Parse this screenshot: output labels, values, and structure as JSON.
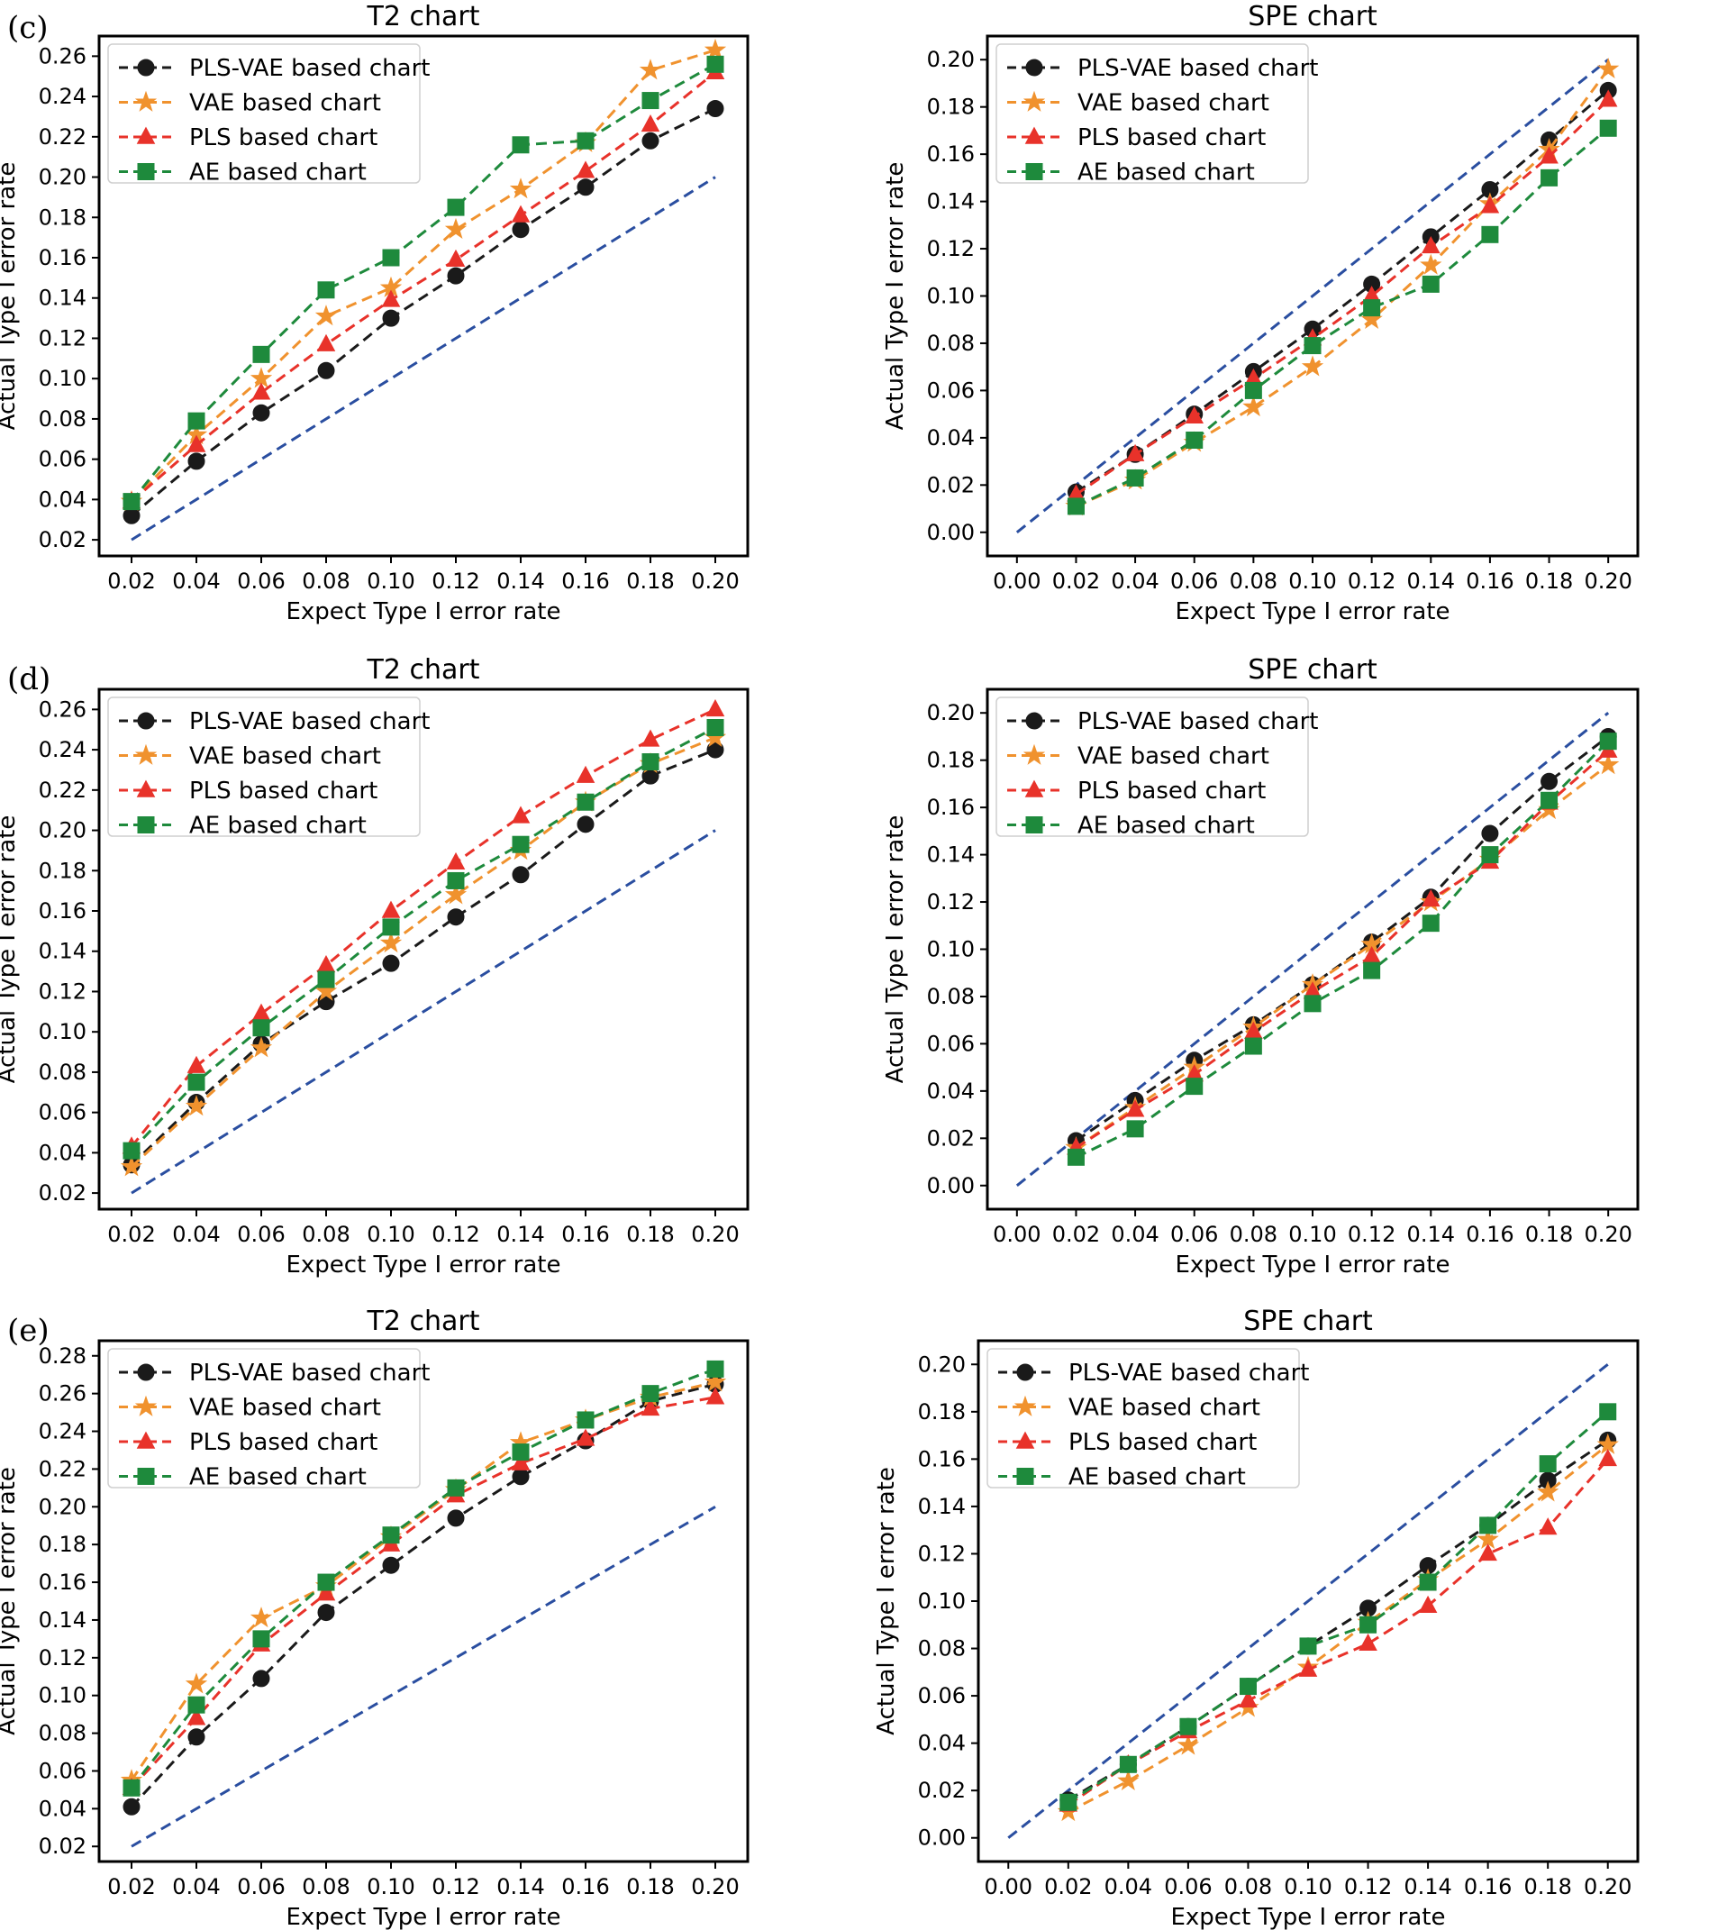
{
  "panel_labels": [
    "(c)",
    "(d)",
    "(e)"
  ],
  "chart_data": [
    {
      "id": "c-t2",
      "panel": "(c)",
      "type": "line",
      "title": "T2 chart",
      "xlabel": "Expect Type I error rate",
      "ylabel": "Actual Type I error rate",
      "x": [
        0.02,
        0.04,
        0.06,
        0.08,
        0.1,
        0.12,
        0.14,
        0.16,
        0.18,
        0.2
      ],
      "xticks": [
        "0.02",
        "0.04",
        "0.06",
        "0.08",
        "0.10",
        "0.12",
        "0.14",
        "0.16",
        "0.18",
        "0.20"
      ],
      "yticks": [
        "0.02",
        "0.04",
        "0.06",
        "0.08",
        "0.10",
        "0.12",
        "0.14",
        "0.16",
        "0.18",
        "0.20",
        "0.22",
        "0.24",
        "0.26"
      ],
      "xlim": [
        0.01,
        0.21
      ],
      "ylim": [
        0.012,
        0.27
      ],
      "reference": {
        "x": [
          0.02,
          0.2
        ],
        "y": [
          0.02,
          0.2
        ],
        "color": "#2a4ea0"
      },
      "legend_position": "upper-left",
      "series": [
        {
          "name": "PLS-VAE based chart",
          "color": "#1a1a1a",
          "marker": "circle",
          "values": [
            0.032,
            0.059,
            0.083,
            0.104,
            0.13,
            0.151,
            0.174,
            0.195,
            0.218,
            0.234
          ]
        },
        {
          "name": "VAE based chart",
          "color": "#f0922e",
          "marker": "star",
          "values": [
            0.039,
            0.072,
            0.1,
            0.131,
            0.145,
            0.174,
            0.194,
            0.217,
            0.253,
            0.263
          ]
        },
        {
          "name": "PLS based chart",
          "color": "#e8322a",
          "marker": "triangle",
          "values": [
            0.039,
            0.067,
            0.093,
            0.117,
            0.139,
            0.159,
            0.181,
            0.203,
            0.226,
            0.252
          ]
        },
        {
          "name": "AE based chart",
          "color": "#1e8a3c",
          "marker": "square",
          "values": [
            0.039,
            0.079,
            0.112,
            0.144,
            0.16,
            0.185,
            0.216,
            0.218,
            0.238,
            0.256
          ]
        }
      ]
    },
    {
      "id": "c-spe",
      "panel": "(c)",
      "type": "line",
      "title": "SPE chart",
      "xlabel": "Expect Type I error rate",
      "ylabel": "Actual Type I error rate",
      "x": [
        0.02,
        0.04,
        0.06,
        0.08,
        0.1,
        0.12,
        0.14,
        0.16,
        0.18,
        0.2
      ],
      "xticks": [
        "0.00",
        "0.02",
        "0.04",
        "0.06",
        "0.08",
        "0.10",
        "0.12",
        "0.14",
        "0.16",
        "0.18",
        "0.20"
      ],
      "yticks": [
        "0.00",
        "0.02",
        "0.04",
        "0.06",
        "0.08",
        "0.10",
        "0.12",
        "0.14",
        "0.16",
        "0.18",
        "0.20"
      ],
      "xlim": [
        -0.01,
        0.21
      ],
      "ylim": [
        -0.01,
        0.21
      ],
      "reference": {
        "x": [
          0.0,
          0.2
        ],
        "y": [
          0.0,
          0.2
        ],
        "color": "#2a4ea0"
      },
      "legend_position": "upper-left",
      "series": [
        {
          "name": "PLS-VAE based chart",
          "color": "#1a1a1a",
          "marker": "circle",
          "values": [
            0.017,
            0.033,
            0.05,
            0.068,
            0.086,
            0.105,
            0.125,
            0.145,
            0.166,
            0.187
          ]
        },
        {
          "name": "VAE based chart",
          "color": "#f0922e",
          "marker": "star",
          "values": [
            0.011,
            0.022,
            0.038,
            0.053,
            0.07,
            0.09,
            0.113,
            0.139,
            0.162,
            0.196
          ]
        },
        {
          "name": "PLS based chart",
          "color": "#e8322a",
          "marker": "triangle",
          "values": [
            0.016,
            0.033,
            0.049,
            0.065,
            0.082,
            0.1,
            0.121,
            0.138,
            0.159,
            0.183
          ]
        },
        {
          "name": "AE based chart",
          "color": "#1e8a3c",
          "marker": "square",
          "values": [
            0.011,
            0.023,
            0.039,
            0.06,
            0.079,
            0.095,
            0.105,
            0.126,
            0.15,
            0.171
          ]
        }
      ]
    },
    {
      "id": "d-t2",
      "panel": "(d)",
      "type": "line",
      "title": "T2 chart",
      "xlabel": "Expect Type I error rate",
      "ylabel": "Actual Type I error rate",
      "x": [
        0.02,
        0.04,
        0.06,
        0.08,
        0.1,
        0.12,
        0.14,
        0.16,
        0.18,
        0.2
      ],
      "xticks": [
        "0.02",
        "0.04",
        "0.06",
        "0.08",
        "0.10",
        "0.12",
        "0.14",
        "0.16",
        "0.18",
        "0.20"
      ],
      "yticks": [
        "0.02",
        "0.04",
        "0.06",
        "0.08",
        "0.10",
        "0.12",
        "0.14",
        "0.16",
        "0.18",
        "0.20",
        "0.22",
        "0.24",
        "0.26"
      ],
      "xlim": [
        0.01,
        0.21
      ],
      "ylim": [
        0.012,
        0.27
      ],
      "reference": {
        "x": [
          0.02,
          0.2
        ],
        "y": [
          0.02,
          0.2
        ],
        "color": "#2a4ea0"
      },
      "legend_position": "upper-left",
      "series": [
        {
          "name": "PLS-VAE based chart",
          "color": "#1a1a1a",
          "marker": "circle",
          "values": [
            0.034,
            0.065,
            0.094,
            0.115,
            0.134,
            0.157,
            0.178,
            0.203,
            0.227,
            0.24
          ]
        },
        {
          "name": "VAE based chart",
          "color": "#f0922e",
          "marker": "star",
          "values": [
            0.033,
            0.063,
            0.092,
            0.12,
            0.144,
            0.168,
            0.19,
            0.214,
            0.233,
            0.246
          ]
        },
        {
          "name": "PLS based chart",
          "color": "#e8322a",
          "marker": "triangle",
          "values": [
            0.043,
            0.083,
            0.109,
            0.133,
            0.16,
            0.184,
            0.207,
            0.227,
            0.245,
            0.26
          ]
        },
        {
          "name": "AE based chart",
          "color": "#1e8a3c",
          "marker": "square",
          "values": [
            0.041,
            0.075,
            0.102,
            0.126,
            0.152,
            0.175,
            0.193,
            0.214,
            0.234,
            0.251
          ]
        }
      ]
    },
    {
      "id": "d-spe",
      "panel": "(d)",
      "type": "line",
      "title": "SPE chart",
      "xlabel": "Expect Type I error rate",
      "ylabel": "Actual Type I error rate",
      "x": [
        0.02,
        0.04,
        0.06,
        0.08,
        0.1,
        0.12,
        0.14,
        0.16,
        0.18,
        0.2
      ],
      "xticks": [
        "0.00",
        "0.02",
        "0.04",
        "0.06",
        "0.08",
        "0.10",
        "0.12",
        "0.14",
        "0.16",
        "0.18",
        "0.20"
      ],
      "yticks": [
        "0.00",
        "0.02",
        "0.04",
        "0.06",
        "0.08",
        "0.10",
        "0.12",
        "0.14",
        "0.16",
        "0.18",
        "0.20"
      ],
      "xlim": [
        -0.01,
        0.21
      ],
      "ylim": [
        -0.01,
        0.21
      ],
      "reference": {
        "x": [
          0.0,
          0.2
        ],
        "y": [
          0.0,
          0.2
        ],
        "color": "#2a4ea0"
      },
      "legend_position": "upper-left",
      "series": [
        {
          "name": "PLS-VAE based chart",
          "color": "#1a1a1a",
          "marker": "circle",
          "values": [
            0.019,
            0.036,
            0.053,
            0.068,
            0.085,
            0.103,
            0.122,
            0.149,
            0.171,
            0.19
          ]
        },
        {
          "name": "VAE based chart",
          "color": "#f0922e",
          "marker": "star",
          "values": [
            0.016,
            0.033,
            0.05,
            0.067,
            0.085,
            0.102,
            0.12,
            0.138,
            0.159,
            0.178
          ]
        },
        {
          "name": "PLS based chart",
          "color": "#e8322a",
          "marker": "triangle",
          "values": [
            0.016,
            0.032,
            0.047,
            0.065,
            0.082,
            0.097,
            0.121,
            0.137,
            0.162,
            0.184
          ]
        },
        {
          "name": "AE based chart",
          "color": "#1e8a3c",
          "marker": "square",
          "values": [
            0.012,
            0.024,
            0.042,
            0.059,
            0.077,
            0.091,
            0.111,
            0.14,
            0.163,
            0.188
          ]
        }
      ]
    },
    {
      "id": "e-t2",
      "panel": "(e)",
      "type": "line",
      "title": "T2 chart",
      "xlabel": "Expect Type I error rate",
      "ylabel": "Actual Type I error rate",
      "x": [
        0.02,
        0.04,
        0.06,
        0.08,
        0.1,
        0.12,
        0.14,
        0.16,
        0.18,
        0.2
      ],
      "xticks": [
        "0.02",
        "0.04",
        "0.06",
        "0.08",
        "0.10",
        "0.12",
        "0.14",
        "0.16",
        "0.18",
        "0.20"
      ],
      "yticks": [
        "0.02",
        "0.04",
        "0.06",
        "0.08",
        "0.10",
        "0.12",
        "0.14",
        "0.16",
        "0.18",
        "0.20",
        "0.22",
        "0.24",
        "0.26",
        "0.28"
      ],
      "xlim": [
        0.01,
        0.21
      ],
      "ylim": [
        0.012,
        0.288
      ],
      "reference": {
        "x": [
          0.02,
          0.2
        ],
        "y": [
          0.02,
          0.2
        ],
        "color": "#2a4ea0"
      },
      "legend_position": "upper-left",
      "series": [
        {
          "name": "PLS-VAE based chart",
          "color": "#1a1a1a",
          "marker": "circle",
          "values": [
            0.041,
            0.078,
            0.109,
            0.144,
            0.169,
            0.194,
            0.216,
            0.235,
            0.256,
            0.265
          ]
        },
        {
          "name": "VAE based chart",
          "color": "#f0922e",
          "marker": "star",
          "values": [
            0.055,
            0.106,
            0.141,
            0.158,
            0.184,
            0.209,
            0.234,
            0.246,
            0.258,
            0.266
          ]
        },
        {
          "name": "PLS based chart",
          "color": "#e8322a",
          "marker": "triangle",
          "values": [
            0.051,
            0.088,
            0.127,
            0.154,
            0.18,
            0.206,
            0.223,
            0.236,
            0.252,
            0.258
          ]
        },
        {
          "name": "AE based chart",
          "color": "#1e8a3c",
          "marker": "square",
          "values": [
            0.051,
            0.095,
            0.13,
            0.16,
            0.185,
            0.21,
            0.229,
            0.246,
            0.26,
            0.273
          ]
        }
      ]
    },
    {
      "id": "e-spe",
      "panel": "(e)",
      "type": "line",
      "title": "SPE chart",
      "xlabel": "Expect Type I error rate",
      "ylabel": "Actual Type I error rate",
      "x": [
        0.02,
        0.04,
        0.06,
        0.08,
        0.1,
        0.12,
        0.14,
        0.16,
        0.18,
        0.2
      ],
      "xticks": [
        "0.00",
        "0.02",
        "0.04",
        "0.06",
        "0.08",
        "0.10",
        "0.12",
        "0.14",
        "0.16",
        "0.18",
        "0.20"
      ],
      "yticks": [
        "0.00",
        "0.02",
        "0.04",
        "0.06",
        "0.08",
        "0.10",
        "0.12",
        "0.14",
        "0.16",
        "0.18",
        "0.20"
      ],
      "xlim": [
        -0.01,
        0.21
      ],
      "ylim": [
        -0.01,
        0.21
      ],
      "reference": {
        "x": [
          0.0,
          0.2
        ],
        "y": [
          0.0,
          0.2
        ],
        "color": "#2a4ea0"
      },
      "legend_position": "upper-left",
      "series": [
        {
          "name": "PLS-VAE based chart",
          "color": "#1a1a1a",
          "marker": "circle",
          "values": [
            0.016,
            0.031,
            0.047,
            0.064,
            0.081,
            0.097,
            0.115,
            0.132,
            0.151,
            0.168
          ]
        },
        {
          "name": "VAE based chart",
          "color": "#f0922e",
          "marker": "star",
          "values": [
            0.011,
            0.024,
            0.039,
            0.055,
            0.072,
            0.091,
            0.109,
            0.126,
            0.146,
            0.166
          ]
        },
        {
          "name": "PLS based chart",
          "color": "#e8322a",
          "marker": "triangle",
          "values": [
            0.014,
            0.031,
            0.045,
            0.058,
            0.071,
            0.082,
            0.098,
            0.12,
            0.131,
            0.16
          ]
        },
        {
          "name": "AE based chart",
          "color": "#1e8a3c",
          "marker": "square",
          "values": [
            0.015,
            0.031,
            0.047,
            0.064,
            0.081,
            0.09,
            0.108,
            0.132,
            0.158,
            0.18
          ]
        }
      ]
    }
  ]
}
